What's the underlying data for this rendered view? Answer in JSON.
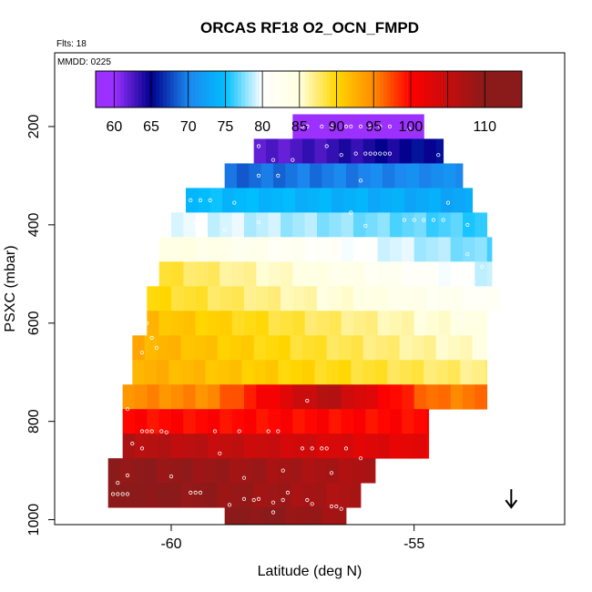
{
  "chart_data": {
    "type": "heatmap",
    "title": "ORCAS RF18 O2_OCN_FMPD",
    "annotations": {
      "flights": "Flts: 18",
      "date": "MMDD: 0225"
    },
    "xlabel": "Latitude (deg N)",
    "ylabel": "PSXC (mbar)",
    "xlim": [
      -62.4,
      -51.9
    ],
    "ylim": [
      1010,
      50
    ],
    "x_ticks": [
      -60,
      -55
    ],
    "x_tick_labels": [
      "-60",
      "-55"
    ],
    "y_ticks": [
      200,
      400,
      600,
      800,
      1000
    ],
    "y_tick_labels": [
      "200",
      "400",
      "600",
      "800",
      "1000"
    ],
    "colorbar": {
      "min": 57.5,
      "max": 115,
      "ticks": [
        60,
        65,
        70,
        75,
        80,
        85,
        90,
        95,
        100,
        110
      ],
      "tick_labels": [
        "60",
        "65",
        "70",
        "75",
        "80",
        "85",
        "90",
        "95",
        "100",
        "110"
      ],
      "colors": [
        "#9b30ff",
        "#00008b",
        "#1c86ee",
        "#00bfff",
        "#ffffff",
        "#ffffe0",
        "#ffd700",
        "#ff8c00",
        "#ff0000",
        "#8b1a1a"
      ]
    },
    "marker": {
      "type": "down-arrow",
      "lat": -53.0,
      "pressure": 975
    },
    "bands": [
      {
        "p_top": 175,
        "p_bot": 225,
        "x0": -57.5,
        "x1": -54.8,
        "v0": 58,
        "v1": 60
      },
      {
        "p_top": 225,
        "p_bot": 275,
        "x0": -58.3,
        "x1": -54.4,
        "v0": 63,
        "v1": 67
      },
      {
        "p_top": 275,
        "p_bot": 325,
        "x0": -58.9,
        "x1": -54.0,
        "v0": 70,
        "v1": 72
      },
      {
        "p_top": 325,
        "p_bot": 375,
        "x0": -59.7,
        "x1": -53.8,
        "v0": 76,
        "v1": 74
      },
      {
        "p_top": 375,
        "p_bot": 425,
        "x0": -60.0,
        "x1": -53.5,
        "v0": 81,
        "v1": 77
      },
      {
        "p_top": 425,
        "p_bot": 475,
        "x0": -60.25,
        "x1": -53.4,
        "v0": 86,
        "v1": 78
      },
      {
        "p_top": 475,
        "p_bot": 525,
        "x0": -60.25,
        "x1": -53.4,
        "v0": 90,
        "v1": 80
      },
      {
        "p_top": 525,
        "p_bot": 575,
        "x0": -60.5,
        "x1": -53.2,
        "v0": 91,
        "v1": 82
      },
      {
        "p_top": 575,
        "p_bot": 625,
        "x0": -60.5,
        "x1": -53.5,
        "v0": 93,
        "v1": 85
      },
      {
        "p_top": 625,
        "p_bot": 675,
        "x0": -60.8,
        "x1": -53.5,
        "v0": 94,
        "v1": 86
      },
      {
        "p_top": 675,
        "p_bot": 725,
        "x0": -60.8,
        "x1": -53.5,
        "v0": 94,
        "v1": 88
      },
      {
        "p_top": 725,
        "p_bot": 775,
        "x0": -61.0,
        "x1": -53.5,
        "v0": 96,
        "v1": 97,
        "peak": 108,
        "peak_x": -56.8
      },
      {
        "p_top": 775,
        "p_bot": 825,
        "x0": -61.0,
        "x1": -54.7,
        "v0": 101,
        "v1": 101
      },
      {
        "p_top": 825,
        "p_bot": 875,
        "x0": -61.0,
        "x1": -54.7,
        "v0": 108,
        "v1": 103
      },
      {
        "p_top": 875,
        "p_bot": 925,
        "x0": -61.3,
        "x1": -55.8,
        "v0": 111,
        "v1": 108
      },
      {
        "p_top": 925,
        "p_bot": 975,
        "x0": -61.3,
        "x1": -56.1,
        "v0": 112,
        "v1": 108
      },
      {
        "p_top": 975,
        "p_bot": 1010,
        "x0": -58.9,
        "x1": -56.4,
        "v0": 112,
        "v1": 109
      }
    ],
    "points": [
      [
        -57.3,
        200
      ],
      [
        -57.2,
        200
      ],
      [
        -56.9,
        200
      ],
      [
        -56.7,
        200
      ],
      [
        -56.4,
        200
      ],
      [
        -56.3,
        200
      ],
      [
        -56.1,
        200
      ],
      [
        -55.9,
        200
      ],
      [
        -55.7,
        200
      ],
      [
        -55.5,
        200
      ],
      [
        -55.1,
        205
      ],
      [
        -58.2,
        240
      ],
      [
        -56.2,
        255
      ],
      [
        -56.0,
        255
      ],
      [
        -55.9,
        255
      ],
      [
        -55.8,
        255
      ],
      [
        -55.7,
        255
      ],
      [
        -55.6,
        255
      ],
      [
        -55.5,
        255
      ],
      [
        -56.5,
        258
      ],
      [
        -54.5,
        258
      ],
      [
        -57.9,
        268
      ],
      [
        -58.2,
        300
      ],
      [
        -57.8,
        300
      ],
      [
        -56.1,
        310
      ],
      [
        -57.5,
        268
      ],
      [
        -56.8,
        240
      ],
      [
        -59.6,
        350
      ],
      [
        -59.4,
        350
      ],
      [
        -59.2,
        350
      ],
      [
        -58.7,
        355
      ],
      [
        -54.3,
        355
      ],
      [
        -58.2,
        395
      ],
      [
        -59.5,
        395
      ],
      [
        -56.3,
        375
      ],
      [
        -55.2,
        390
      ],
      [
        -55.0,
        390
      ],
      [
        -54.8,
        390
      ],
      [
        -54.6,
        390
      ],
      [
        -54.4,
        390
      ],
      [
        -56.0,
        402
      ],
      [
        -53.9,
        400
      ],
      [
        -58.9,
        410
      ],
      [
        -58.5,
        430
      ],
      [
        -59.3,
        410
      ],
      [
        -59.0,
        450
      ],
      [
        -58.8,
        450
      ],
      [
        -58.6,
        450
      ],
      [
        -57.8,
        440
      ],
      [
        -53.9,
        460
      ],
      [
        -53.6,
        485
      ],
      [
        -54.2,
        540
      ],
      [
        -53.6,
        545
      ],
      [
        -54.0,
        590
      ],
      [
        -60.5,
        600
      ],
      [
        -60.4,
        630
      ],
      [
        -60.3,
        650
      ],
      [
        -60.6,
        660
      ],
      [
        -57.2,
        758
      ],
      [
        -60.9,
        775
      ],
      [
        -60.6,
        820
      ],
      [
        -60.5,
        820
      ],
      [
        -60.4,
        820
      ],
      [
        -60.2,
        820
      ],
      [
        -60.1,
        822
      ],
      [
        -59.1,
        820
      ],
      [
        -58.6,
        820
      ],
      [
        -58.0,
        820
      ],
      [
        -57.8,
        820
      ],
      [
        -57.3,
        855
      ],
      [
        -57.1,
        855
      ],
      [
        -56.9,
        855
      ],
      [
        -56.8,
        855
      ],
      [
        -56.4,
        855
      ],
      [
        -60.8,
        845
      ],
      [
        -60.6,
        855
      ],
      [
        -59.0,
        865
      ],
      [
        -57.7,
        900
      ],
      [
        -56.1,
        875
      ],
      [
        -56.7,
        905
      ],
      [
        -57.6,
        945
      ],
      [
        -58.5,
        915
      ],
      [
        -59.6,
        945
      ],
      [
        -59.5,
        945
      ],
      [
        -59.4,
        945
      ],
      [
        -60.0,
        912
      ],
      [
        -60.9,
        910
      ],
      [
        -61.1,
        925
      ],
      [
        -61.2,
        948
      ],
      [
        -61.1,
        948
      ],
      [
        -61.0,
        948
      ],
      [
        -60.9,
        948
      ],
      [
        -58.5,
        958
      ],
      [
        -58.3,
        960
      ],
      [
        -58.2,
        958
      ],
      [
        -57.9,
        965
      ],
      [
        -57.7,
        960
      ],
      [
        -57.2,
        960
      ],
      [
        -57.1,
        968
      ],
      [
        -56.7,
        973
      ],
      [
        -56.6,
        973
      ],
      [
        -56.5,
        978
      ],
      [
        -57.9,
        985
      ],
      [
        -58.8,
        970
      ]
    ]
  }
}
